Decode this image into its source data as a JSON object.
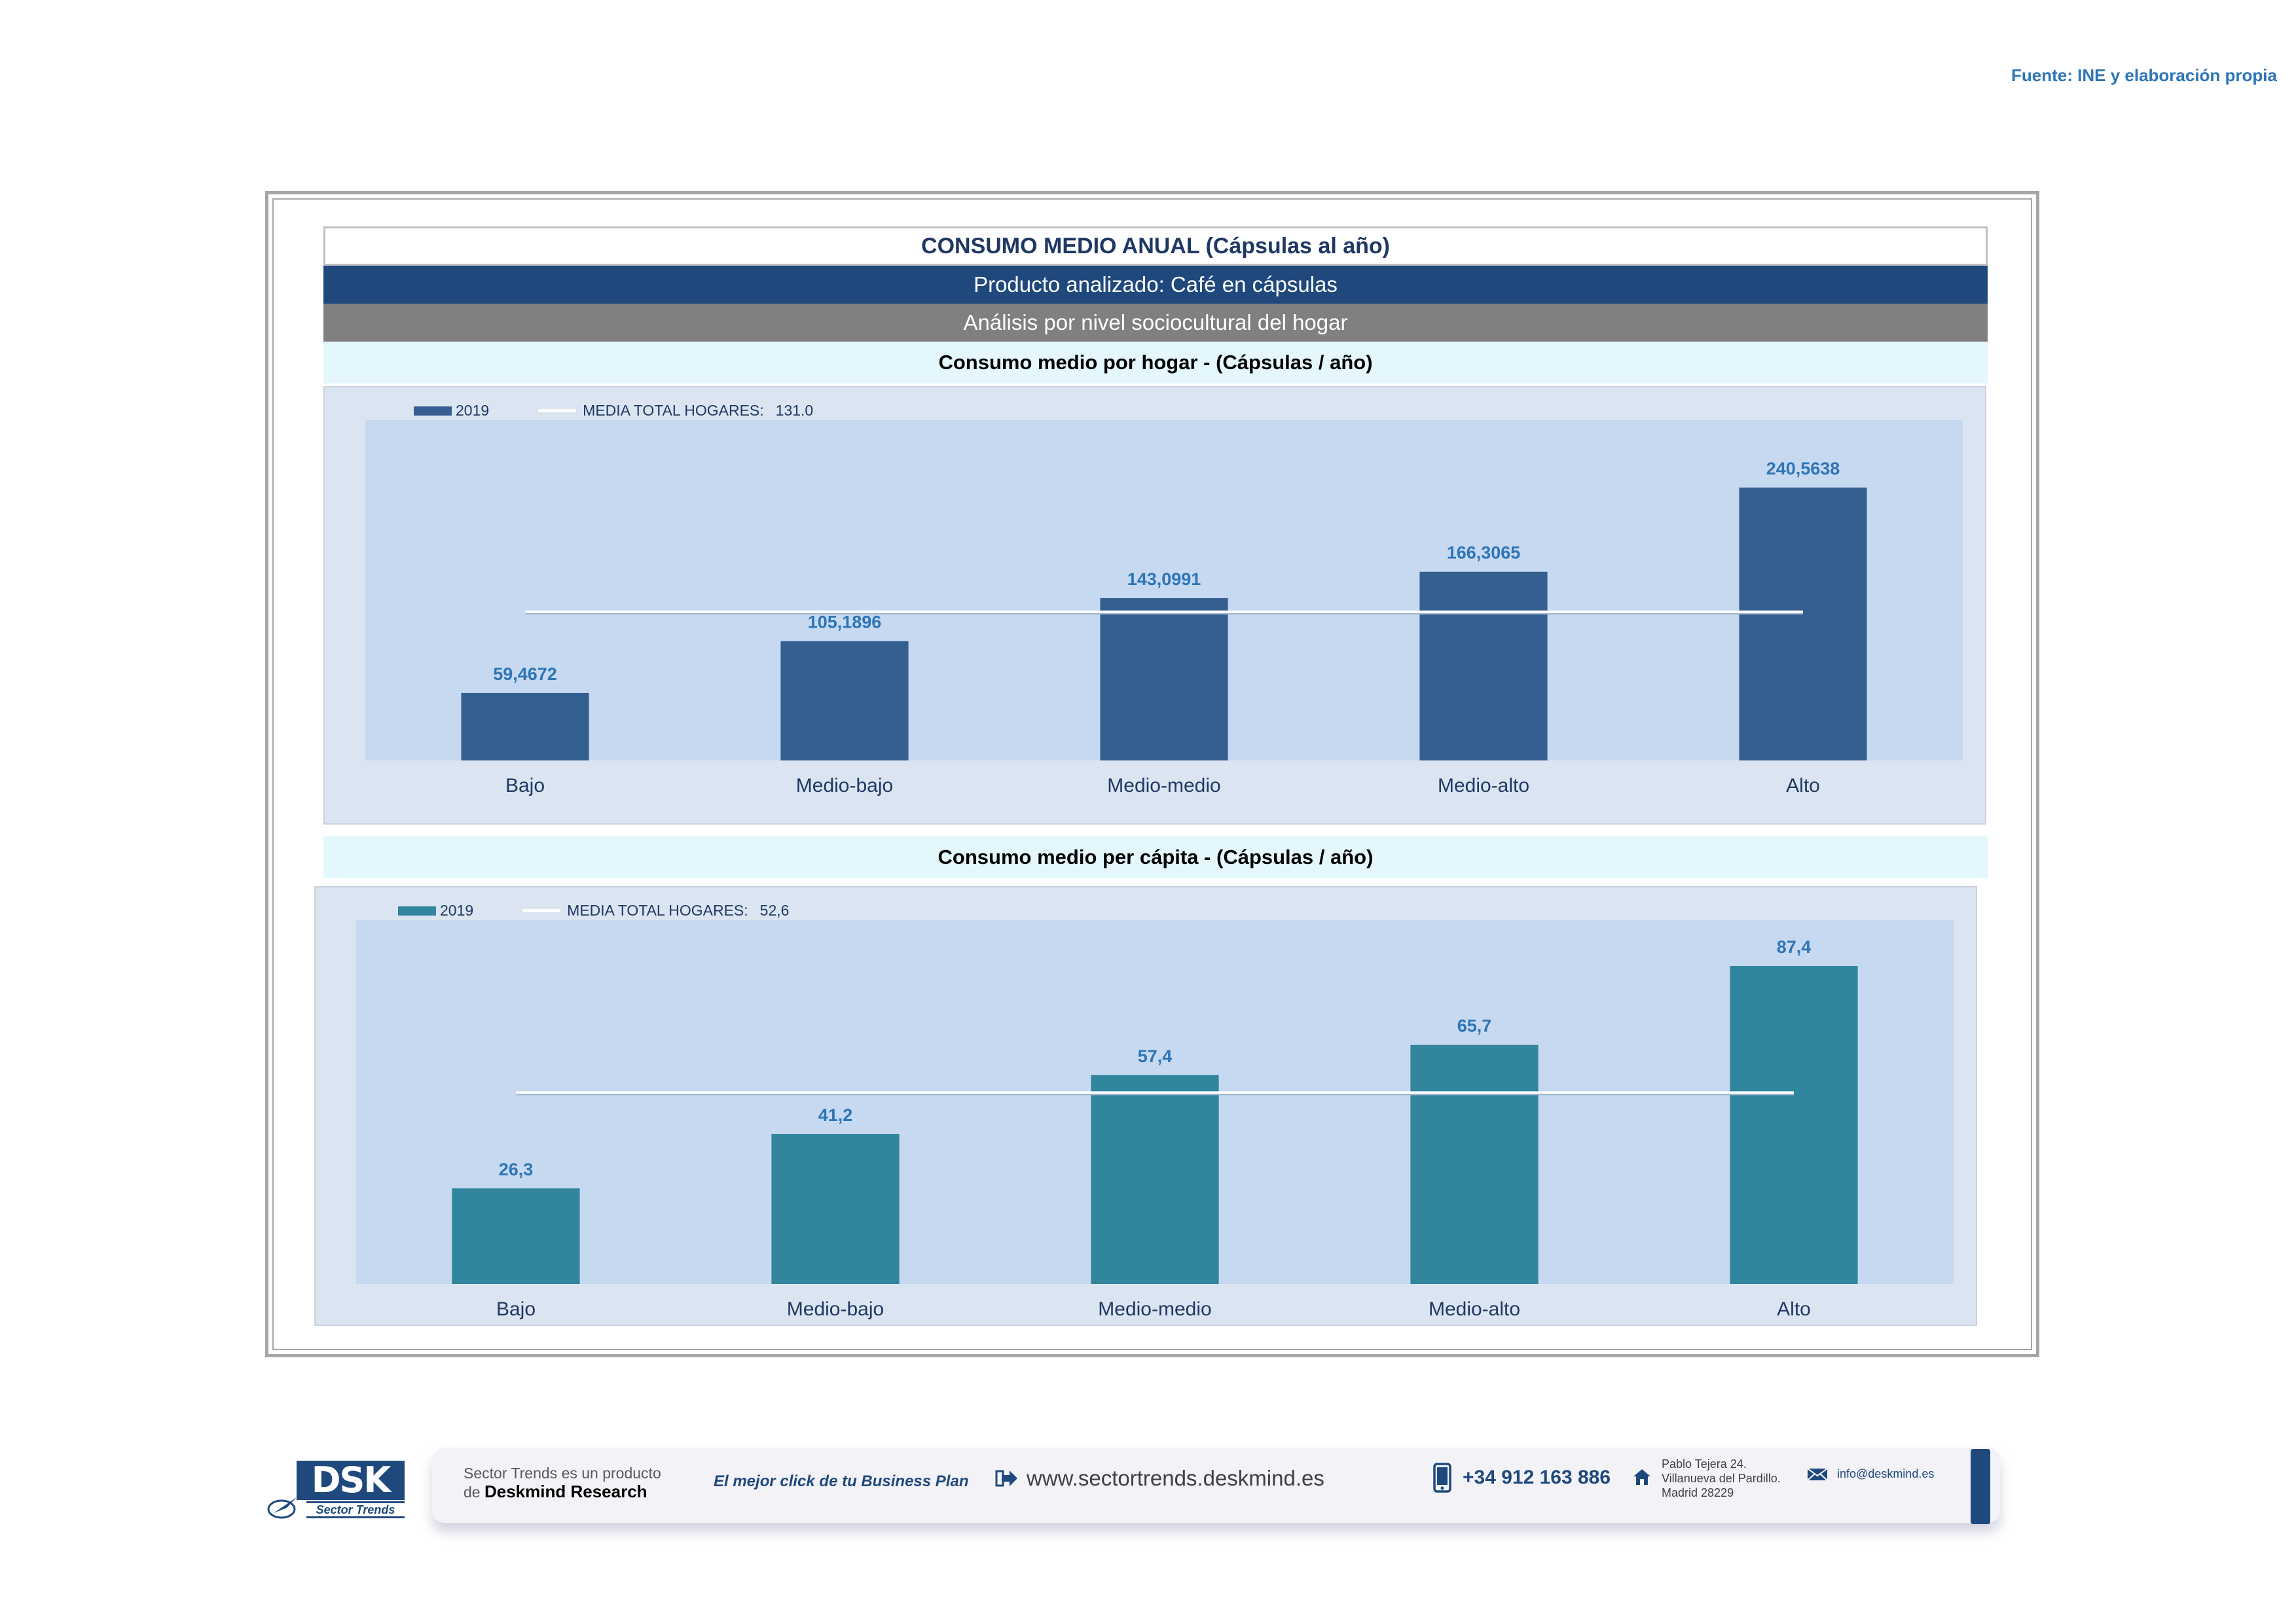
{
  "source_note": "Fuente: INE y elaboración propia",
  "header": {
    "title": "CONSUMO MEDIO ANUAL (Cápsulas al año)",
    "product": "Producto analizado: Café en cápsulas",
    "analysis": "Análisis por nivel sociocultural del hogar"
  },
  "colors": {
    "chart1_bar": "#365f91",
    "chart2_bar": "#31859c",
    "plot_bg": "#c6d9f1",
    "chart_bg": "#dbe5f1",
    "label": "#2e75b6"
  },
  "chart_data": [
    {
      "type": "bar",
      "title": "Consumo medio por hogar -  (Cápsulas / año)",
      "categories": [
        "Bajo",
        "Medio-bajo",
        "Medio-medio",
        "Medio-alto",
        "Alto"
      ],
      "series": [
        {
          "name": "2019",
          "values": [
            59.4672,
            105.1896,
            143.0991,
            166.3065,
            240.5638
          ]
        }
      ],
      "value_labels": [
        "59,4672",
        "105,1896",
        "143,0991",
        "166,3065",
        "240,5638"
      ],
      "reference_line": {
        "name": "MEDIA TOTAL  HOGARES:",
        "value": 131.0,
        "label": "131.0"
      },
      "ylim": [
        0,
        300
      ],
      "legend_position": "top-left",
      "grid": false
    },
    {
      "type": "bar",
      "title": "Consumo medio per cápita -  (Cápsulas / año)",
      "categories": [
        "Bajo",
        "Medio-bajo",
        "Medio-medio",
        "Medio-alto",
        "Alto"
      ],
      "series": [
        {
          "name": "2019",
          "values": [
            26.3,
            41.2,
            57.4,
            65.7,
            87.4
          ]
        }
      ],
      "value_labels": [
        "26,3",
        "41,2",
        "57,4",
        "65,7",
        "87,4"
      ],
      "reference_line": {
        "name": "MEDIA TOTAL  HOGARES:",
        "value": 52.6,
        "label": "52,6"
      },
      "ylim": [
        0,
        100
      ],
      "legend_position": "top-left",
      "grid": false
    }
  ],
  "footer": {
    "tagline_1": "Sector Trends es un producto",
    "tagline_2_prefix": "de ",
    "tagline_2_brand": "Deskmind Research",
    "slogan": "El mejor click de tu Business Plan",
    "website": "www.sectortrends.deskmind.es",
    "phone": "+34 912 163 886",
    "address_1": "Pablo Tejera 24.",
    "address_2": "Villanueva del Pardillo.",
    "address_3": "Madrid 28229",
    "email": "info@deskmind.es",
    "logo_text": "DSK",
    "logo_sub": "Sector Trends",
    "icons": [
      "arrow-right-icon",
      "phone-icon",
      "home-icon",
      "mail-icon"
    ]
  }
}
